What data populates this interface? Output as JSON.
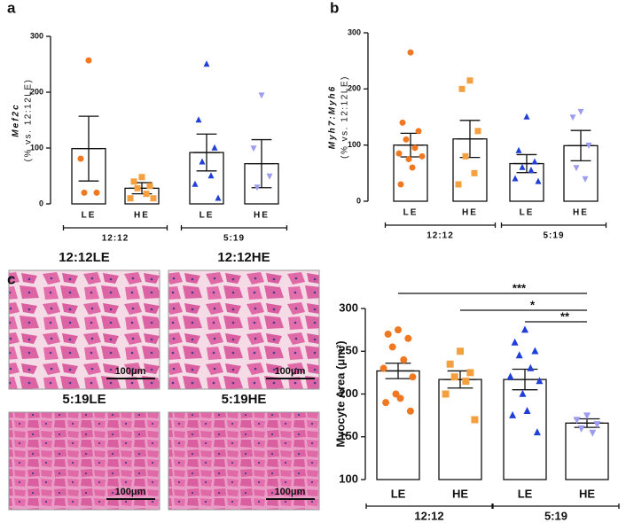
{
  "chart_data": [
    {
      "type": "bar",
      "panel_label": "a",
      "ylabel": "Mef2c",
      "ylabel_sub": "(% vs. 12:12LE)",
      "ylim": [
        0,
        300
      ],
      "yticks": [
        0,
        100,
        200,
        300
      ],
      "categories": [
        "LE",
        "HE",
        "LE",
        "HE"
      ],
      "group_labels": [
        "12:12",
        "5:19"
      ],
      "groups": [
        {
          "mean": 99,
          "sem": 58,
          "points": [
            257,
            81,
            20,
            20
          ],
          "color": "#f07820",
          "marker": "circle"
        },
        {
          "mean": 28,
          "sem": 10,
          "points": [
            48,
            40,
            32,
            28,
            18,
            10,
            10
          ],
          "color": "#f5a040",
          "marker": "square"
        },
        {
          "mean": 92,
          "sem": 33,
          "points": [
            250,
            150,
            100,
            75,
            50,
            35,
            10
          ],
          "color": "#1f3fd8",
          "marker": "triangle"
        },
        {
          "mean": 72,
          "sem": 43,
          "points": [
            195,
            100,
            50,
            30
          ],
          "color": "#9c9cf0",
          "marker": "triangle-down"
        }
      ]
    },
    {
      "type": "bar",
      "panel_label": "b",
      "ylabel": "Myh7:Myh6",
      "ylabel_sub": "(% vs. 12:12LE)",
      "ylim": [
        0,
        300
      ],
      "yticks": [
        0,
        100,
        200,
        300
      ],
      "categories": [
        "LE",
        "HE",
        "LE",
        "HE"
      ],
      "group_labels": [
        "12:12",
        "5:19"
      ],
      "groups": [
        {
          "mean": 100,
          "sem": 21,
          "points": [
            265,
            140,
            125,
            110,
            95,
            85,
            80,
            75,
            60,
            30
          ],
          "color": "#f07820",
          "marker": "circle"
        },
        {
          "mean": 111,
          "sem": 33,
          "points": [
            215,
            200,
            125,
            80,
            50,
            30
          ],
          "color": "#f5a040",
          "marker": "square"
        },
        {
          "mean": 67,
          "sem": 16,
          "points": [
            150,
            90,
            70,
            60,
            55,
            40,
            35
          ],
          "color": "#1f3fd8",
          "marker": "triangle"
        },
        {
          "mean": 99,
          "sem": 27,
          "points": [
            160,
            150,
            100,
            60,
            40
          ],
          "color": "#9c9cf0",
          "marker": "triangle-down"
        }
      ]
    },
    {
      "type": "bar",
      "panel_label": "c",
      "ylabel": "Myocyte Area (μm²)",
      "ylim": [
        100,
        300
      ],
      "yticks": [
        100,
        150,
        200,
        250,
        300
      ],
      "categories": [
        "LE",
        "HE",
        "LE",
        "HE"
      ],
      "group_labels": [
        "12:12",
        "5:19"
      ],
      "significance": [
        "***",
        "*",
        "**"
      ],
      "groups": [
        {
          "mean": 227,
          "sem": 9,
          "points": [
            275,
            270,
            265,
            255,
            240,
            230,
            220,
            200,
            195,
            190,
            180
          ],
          "color": "#f07820",
          "marker": "circle"
        },
        {
          "mean": 217,
          "sem": 10,
          "points": [
            250,
            235,
            225,
            220,
            215,
            200,
            170
          ],
          "color": "#f5a040",
          "marker": "square"
        },
        {
          "mean": 217,
          "sem": 12,
          "points": [
            275,
            260,
            250,
            245,
            230,
            220,
            215,
            200,
            180,
            175,
            155
          ],
          "color": "#1f3fd8",
          "marker": "triangle"
        },
        {
          "mean": 166,
          "sem": 5,
          "points": [
            175,
            170,
            165,
            160,
            155
          ],
          "color": "#9c9cf0",
          "marker": "triangle-down"
        }
      ]
    }
  ],
  "micrographs": [
    {
      "title": "12:12LE",
      "scale": "100μm"
    },
    {
      "title": "12:12HE",
      "scale": "100μm"
    },
    {
      "title": "5:19LE",
      "scale": "100μm"
    },
    {
      "title": "5:19HE",
      "scale": "100μm"
    }
  ]
}
